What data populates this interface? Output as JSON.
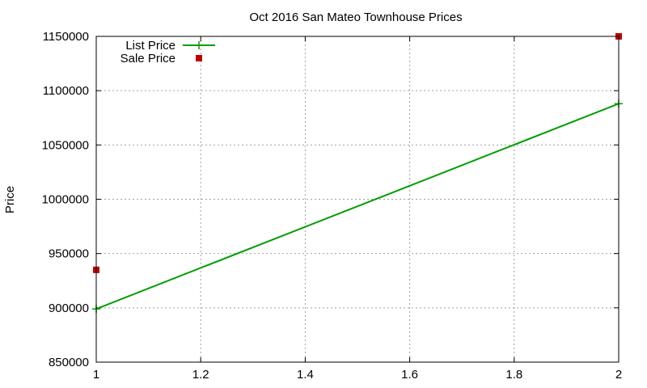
{
  "chart_data": {
    "type": "line",
    "title": "Oct 2016 San Mateo Townhouse Prices",
    "xlabel": "",
    "ylabel": "Price",
    "xlim": [
      1,
      2
    ],
    "ylim": [
      850000,
      1150000
    ],
    "x_ticks": [
      {
        "value": 1,
        "label": "1"
      },
      {
        "value": 1.2,
        "label": "1.2"
      },
      {
        "value": 1.4,
        "label": "1.4"
      },
      {
        "value": 1.6,
        "label": "1.6"
      },
      {
        "value": 1.8,
        "label": "1.8"
      },
      {
        "value": 2,
        "label": "2"
      }
    ],
    "y_ticks": [
      {
        "value": 850000,
        "label": "850000"
      },
      {
        "value": 900000,
        "label": "900000"
      },
      {
        "value": 950000,
        "label": "950000"
      },
      {
        "value": 1000000,
        "label": "1000000"
      },
      {
        "value": 1050000,
        "label": "1050000"
      },
      {
        "value": 1100000,
        "label": "1100000"
      },
      {
        "value": 1150000,
        "label": "1150000"
      }
    ],
    "grid": true,
    "legend_position": "top-left",
    "series": [
      {
        "name": "List Price",
        "style": "linespoints",
        "marker": "plus",
        "color": "#009e00",
        "x": [
          1,
          2
        ],
        "y": [
          899000,
          1088000
        ]
      },
      {
        "name": "Sale Price",
        "style": "points",
        "marker": "square",
        "color": "#c00000",
        "x": [
          1,
          2
        ],
        "y": [
          935000,
          1150000
        ]
      }
    ]
  }
}
